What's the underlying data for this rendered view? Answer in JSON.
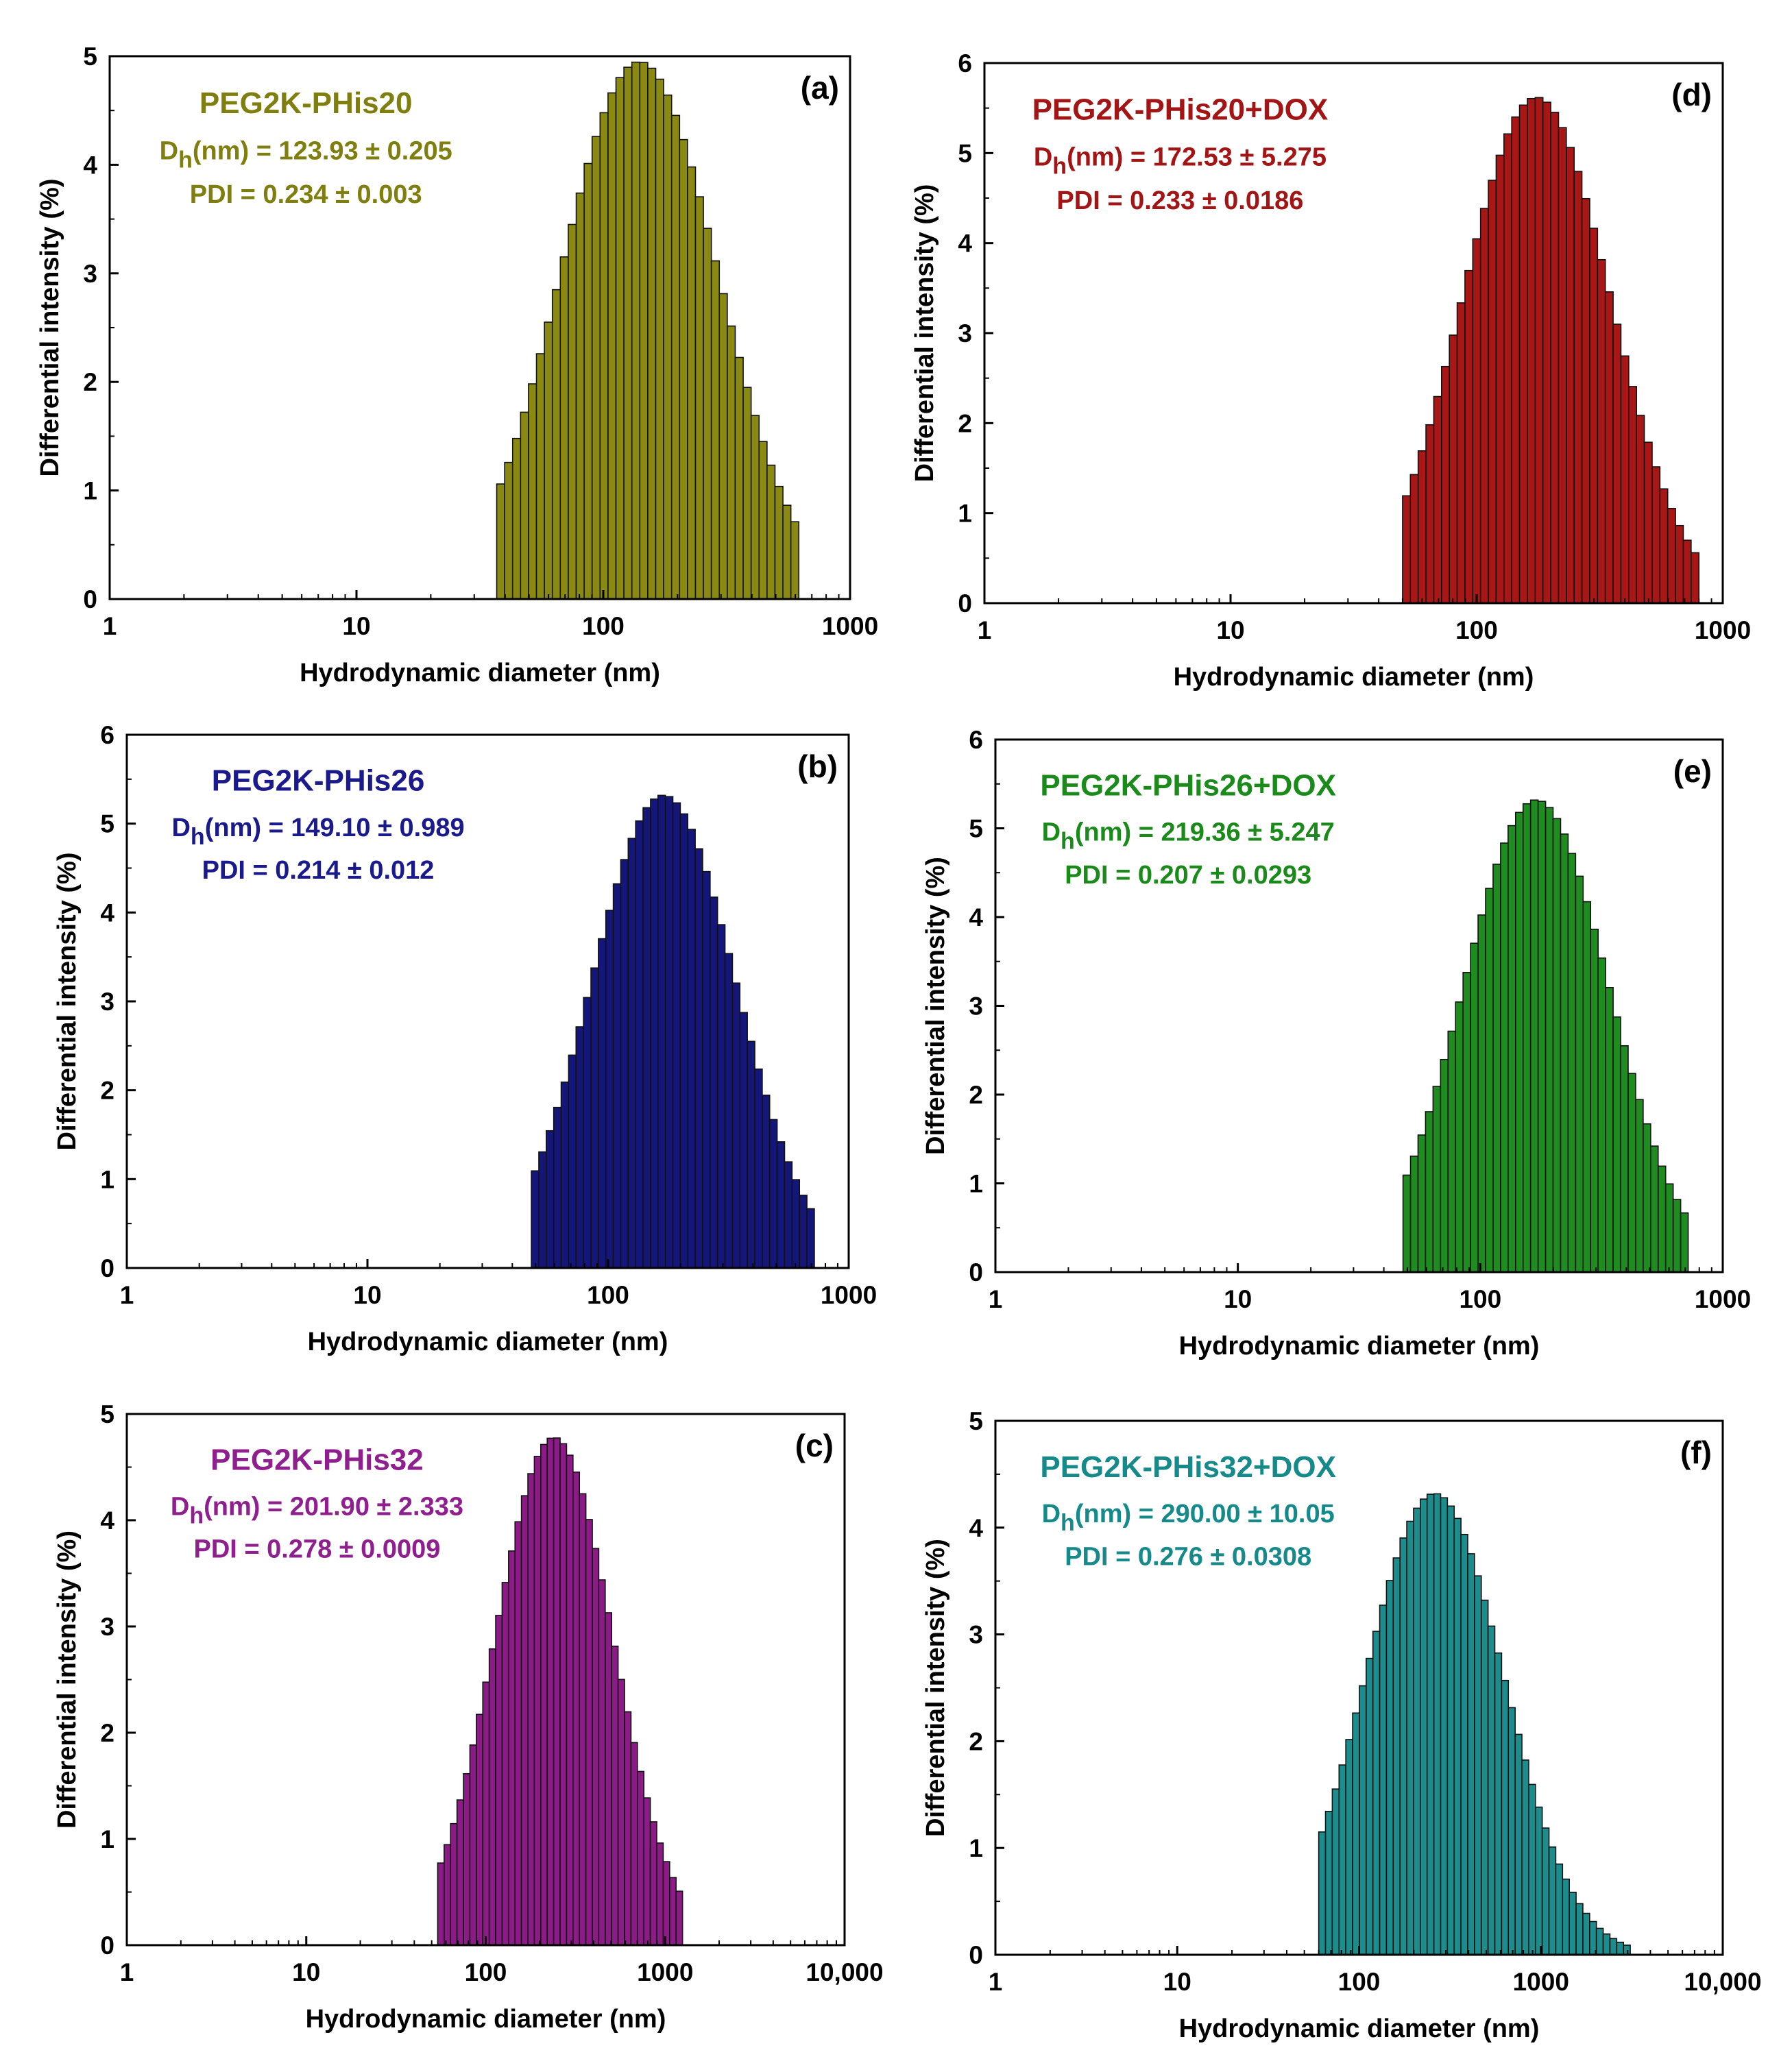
{
  "figure": {
    "panels": [
      "a",
      "b",
      "c",
      "d",
      "e",
      "f"
    ]
  },
  "chart_data": [
    {
      "id": "a",
      "type": "bar",
      "panel_label": "(a)",
      "color": "#8a8a12",
      "text_color": "#7f7f10",
      "title": "PEG2K-PHis20",
      "dh_prefix": "D",
      "dh_sub": "h",
      "dh_value": "(nm) = 123.93 ± 0.205",
      "pdi_text": "PDI = 0.234 ± 0.003",
      "xlabel": "Hydrodynamic diameter (nm)",
      "ylabel": "Differential intensity (%)",
      "xscale": "log",
      "xlim": [
        1,
        1000
      ],
      "ylim": [
        0,
        5
      ],
      "xticks": [
        1,
        10,
        100,
        1000
      ],
      "xtick_labels": [
        "1",
        "10",
        "100",
        "1000"
      ],
      "yticks": [
        0,
        1,
        2,
        3,
        4,
        5
      ],
      "ytick_labels": [
        "0",
        "1",
        "2",
        "3",
        "4",
        "5"
      ],
      "distribution": {
        "center": 140,
        "min": 37,
        "max": 620,
        "peak": 4.95,
        "sigma": 0.32,
        "bins": 38
      }
    },
    {
      "id": "b",
      "type": "bar",
      "panel_label": "(b)",
      "color": "#14167a",
      "text_color": "#1a1a8c",
      "title": "PEG2K-PHis26",
      "dh_prefix": "D",
      "dh_sub": "h",
      "dh_value": "(nm) = 149.10 ± 0.989",
      "pdi_text": "PDI = 0.214 ± 0.012",
      "xlabel": "Hydrodynamic diameter (nm)",
      "ylabel": "Differential intensity (%)",
      "xscale": "log",
      "xlim": [
        1,
        1000
      ],
      "ylim": [
        0,
        6
      ],
      "xticks": [
        1,
        10,
        100,
        1000
      ],
      "xtick_labels": [
        "1",
        "10",
        "100",
        "1000"
      ],
      "yticks": [
        0,
        1,
        2,
        3,
        4,
        5,
        6
      ],
      "ytick_labels": [
        "0",
        "1",
        "2",
        "3",
        "4",
        "5",
        "6"
      ],
      "distribution": {
        "center": 170,
        "min": 48,
        "max": 720,
        "peak": 5.32,
        "sigma": 0.3,
        "bins": 38
      }
    },
    {
      "id": "c",
      "type": "bar",
      "panel_label": "(c)",
      "color": "#8c1a87",
      "text_color": "#8f1f8f",
      "title": "PEG2K-PHis32",
      "dh_prefix": "D",
      "dh_sub": "h",
      "dh_value": "(nm) = 201.90 ± 2.333",
      "pdi_text": "PDI = 0.278 ± 0.0009",
      "xlabel": "Hydrodynamic diameter (nm)",
      "ylabel": "Differential intensity (%)",
      "xscale": "log",
      "xlim": [
        1,
        10000
      ],
      "ylim": [
        0,
        5
      ],
      "xticks": [
        1,
        10,
        100,
        1000,
        10000
      ],
      "xtick_labels": [
        "1",
        "10",
        "100",
        "1000",
        "10,000"
      ],
      "yticks": [
        0,
        1,
        2,
        3,
        4,
        5
      ],
      "ytick_labels": [
        "0",
        "1",
        "2",
        "3",
        "4",
        "5"
      ],
      "distribution": {
        "center": 240,
        "min": 54,
        "max": 1250,
        "peak": 4.78,
        "sigma": 0.33,
        "bins": 38
      }
    },
    {
      "id": "d",
      "type": "bar",
      "panel_label": "(d)",
      "color": "#a81616",
      "text_color": "#a31515",
      "title": "PEG2K-PHis20+DOX",
      "dh_prefix": "D",
      "dh_sub": "h",
      "dh_value": "(nm) = 172.53 ± 5.275",
      "pdi_text": "PDI = 0.233 ± 0.0186",
      "xlabel": "Hydrodynamic diameter (nm)",
      "ylabel": "Differential intensity (%)",
      "xscale": "log",
      "xlim": [
        1,
        1000
      ],
      "ylim": [
        0,
        6
      ],
      "xticks": [
        1,
        10,
        100,
        1000
      ],
      "xtick_labels": [
        "1",
        "10",
        "100",
        "1000"
      ],
      "yticks": [
        0,
        1,
        2,
        3,
        4,
        5,
        6
      ],
      "ytick_labels": [
        "0",
        "1",
        "2",
        "3",
        "4",
        "5",
        "6"
      ],
      "distribution": {
        "center": 175,
        "min": 50,
        "max": 800,
        "peak": 5.62,
        "sigma": 0.3,
        "bins": 38
      }
    },
    {
      "id": "e",
      "type": "bar",
      "panel_label": "(e)",
      "color": "#1f8c1f",
      "text_color": "#1a8a1a",
      "title": "PEG2K-PHis26+DOX",
      "dh_prefix": "D",
      "dh_sub": "h",
      "dh_value": "(nm) = 219.36 ± 5.247",
      "pdi_text": "PDI = 0.207 ± 0.0293",
      "xlabel": "Hydrodynamic diameter (nm)",
      "ylabel": "Differential intensity (%)",
      "xscale": "log",
      "xlim": [
        1,
        1000
      ],
      "ylim": [
        0,
        6
      ],
      "xticks": [
        1,
        10,
        100,
        1000
      ],
      "xtick_labels": [
        "1",
        "10",
        "100",
        "1000"
      ],
      "yticks": [
        0,
        1,
        2,
        3,
        4,
        5,
        6
      ],
      "ytick_labels": [
        "0",
        "1",
        "2",
        "3",
        "4",
        "5",
        "6"
      ],
      "distribution": {
        "center": 170,
        "min": 48,
        "max": 720,
        "peak": 5.32,
        "sigma": 0.3,
        "bins": 38
      }
    },
    {
      "id": "f",
      "type": "bar",
      "panel_label": "(f)",
      "color": "#1c8c8c",
      "text_color": "#168a8a",
      "title": "PEG2K-PHis32+DOX",
      "dh_prefix": "D",
      "dh_sub": "h",
      "dh_value": "(nm) = 290.00 ± 10.05",
      "pdi_text": "PDI = 0.276 ± 0.0308",
      "xlabel": "Hydrodynamic diameter (nm)",
      "ylabel": "Differential intensity (%)",
      "xscale": "log",
      "xlim": [
        1,
        10000
      ],
      "ylim": [
        0,
        5
      ],
      "xticks": [
        1,
        10,
        100,
        1000,
        10000
      ],
      "xtick_labels": [
        "1",
        "10",
        "100",
        "1000",
        "10,000"
      ],
      "yticks": [
        0,
        1,
        2,
        3,
        4,
        5
      ],
      "ytick_labels": [
        "0",
        "1",
        "2",
        "3",
        "4",
        "5"
      ],
      "distribution": {
        "center": 260,
        "min": 60,
        "max": 3100,
        "peak": 4.32,
        "sigma": 0.38,
        "bins": 46
      }
    }
  ]
}
